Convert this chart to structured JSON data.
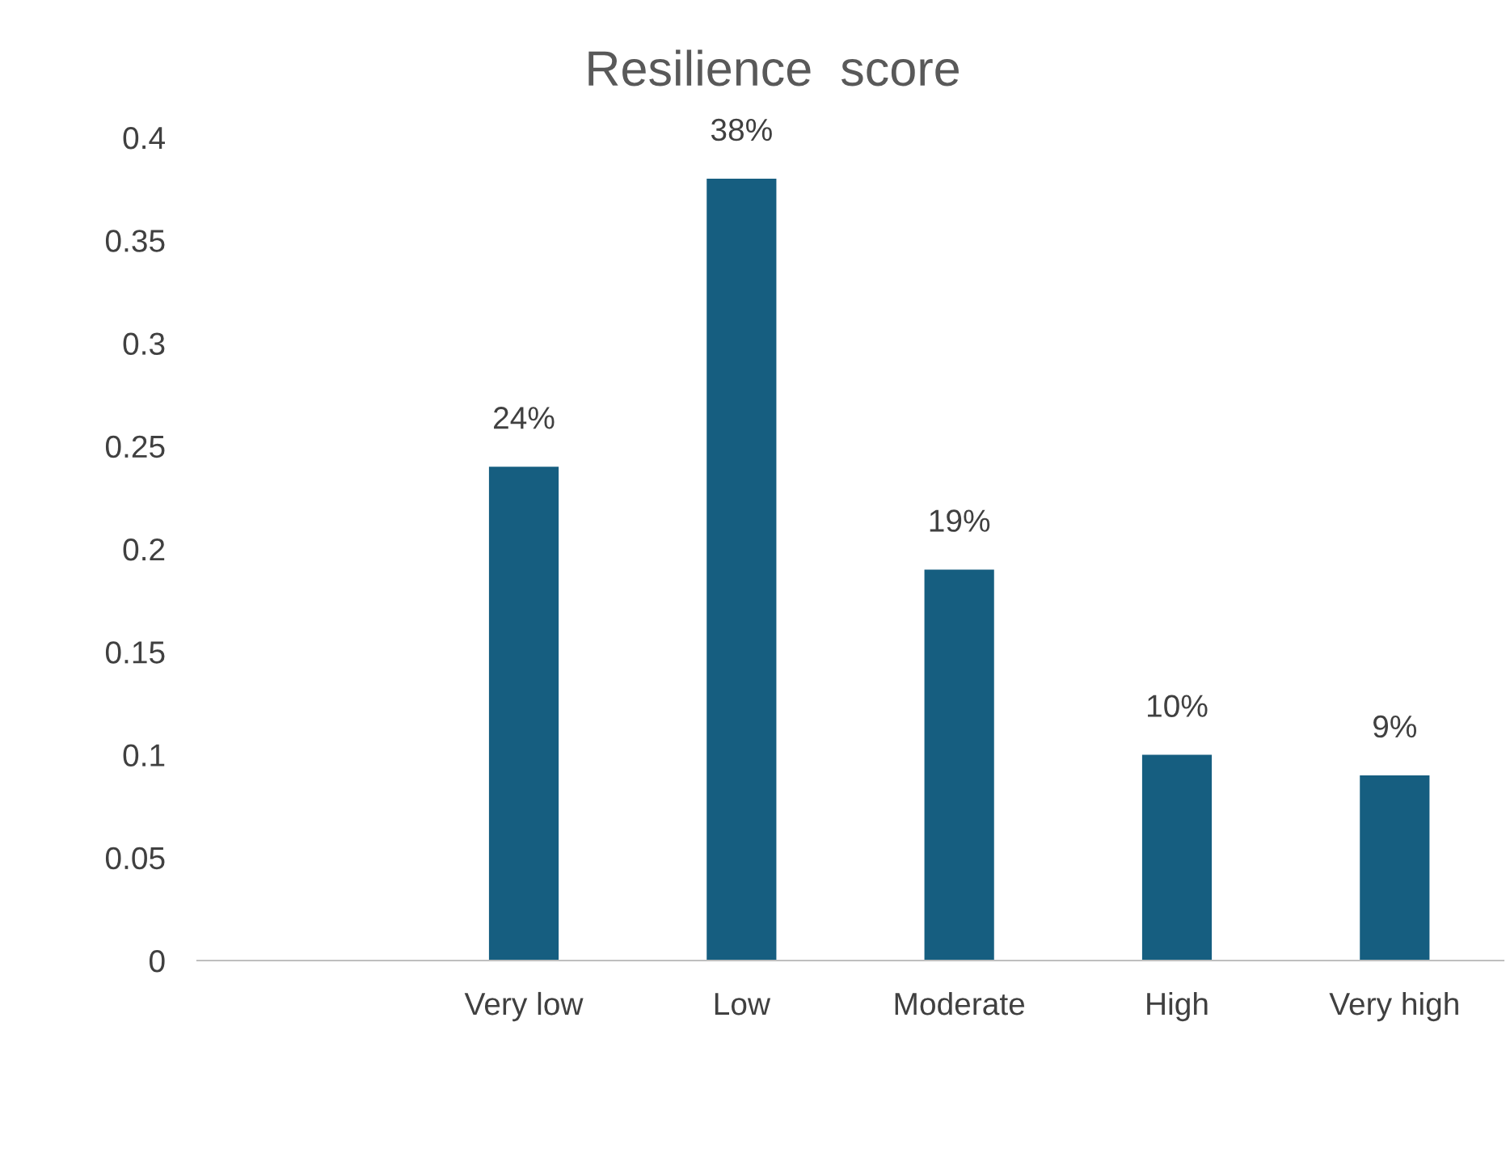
{
  "chart_data": {
    "type": "bar",
    "title": "Resilience  score",
    "categories": [
      null,
      "Very low",
      "Low",
      "Moderate",
      "High",
      "Very high"
    ],
    "values": [
      null,
      0.24,
      0.38,
      0.19,
      0.1,
      0.09
    ],
    "value_labels": [
      null,
      "24%",
      "38%",
      "19%",
      "10%",
      "9%"
    ],
    "color": "#165e80",
    "ylim": [
      0,
      0.4
    ],
    "yticks": [
      0,
      0.05,
      0.1,
      0.15,
      0.2,
      0.25,
      0.3,
      0.35,
      0.4
    ],
    "grid": false
  }
}
